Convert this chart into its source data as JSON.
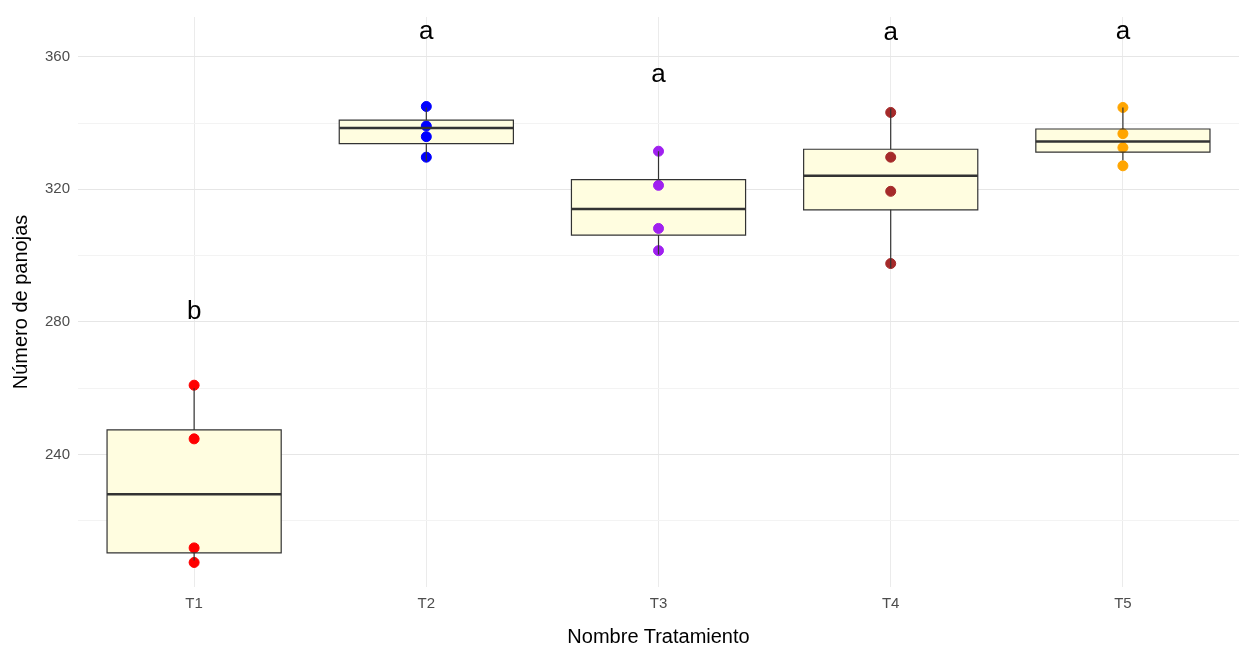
{
  "chart_data": {
    "type": "box",
    "xlabel": "Nombre Tratamiento",
    "ylabel": "Número de panojas",
    "categories": [
      "T1",
      "T2",
      "T3",
      "T4",
      "T5"
    ],
    "series": [
      {
        "color": "#fffde0",
        "boxes": [
          {
            "low": 208,
            "q1": 210.3,
            "median": 228,
            "q3": 247.4,
            "high": 260
          },
          {
            "low": 328.5,
            "q1": 333.8,
            "median": 338.5,
            "q3": 340.9,
            "high": 344.7
          },
          {
            "low": 300.3,
            "q1": 306.2,
            "median": 314.1,
            "q3": 322.9,
            "high": 331.5
          },
          {
            "low": 296.2,
            "q1": 313.8,
            "median": 324.1,
            "q3": 332.1,
            "high": 344.4
          },
          {
            "low": 328.8,
            "q1": 331.2,
            "median": 334.4,
            "q3": 338.2,
            "high": 344.7
          }
        ]
      },
      {
        "type": "scatter",
        "marker": "circle",
        "x": [
          "T1",
          "T1",
          "T1",
          "T1",
          "T2",
          "T2",
          "T2",
          "T2",
          "T3",
          "T3",
          "T3",
          "T3",
          "T4",
          "T4",
          "T4",
          "T4",
          "T5",
          "T5",
          "T5",
          "T5"
        ],
        "values": [
          260.9,
          244.7,
          211.8,
          207.4,
          345,
          335.9,
          339.1,
          329.7,
          331.5,
          321.2,
          308.2,
          301.5,
          343.2,
          329.7,
          319.4,
          297.6,
          344.7,
          336.8,
          332.6,
          327.1
        ],
        "colors": [
          "#ff0000",
          "#ff0000",
          "#ff0000",
          "#ff0000",
          "#0000ff",
          "#0000ff",
          "#0000ff",
          "#0000ff",
          "#a020f0",
          "#a020f0",
          "#a020f0",
          "#a020f0",
          "#a52a2a",
          "#a52a2a",
          "#a52a2a",
          "#a52a2a",
          "#ffa500",
          "#ffa500",
          "#ffa500",
          "#ffa500"
        ]
      }
    ],
    "ylim": [
      200,
      372
    ],
    "yticks": [
      {
        "value": 220,
        "label": null
      },
      240,
      {
        "value": 260,
        "label": null
      },
      280,
      {
        "value": 300,
        "label": null
      },
      320,
      {
        "value": 340,
        "label": null
      },
      360
    ],
    "grid": true,
    "annotations": [
      "b",
      "a",
      "a",
      "a",
      "a"
    ]
  }
}
